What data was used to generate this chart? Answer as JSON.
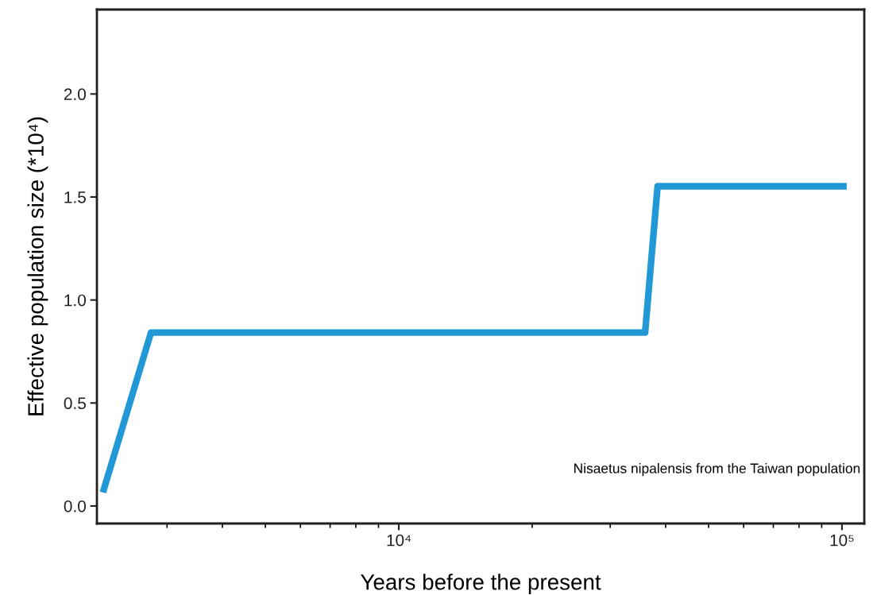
{
  "chart_data": {
    "type": "line",
    "xlabel": "Years before the present",
    "ylabel": "Effective population size (*10⁴)",
    "log": "x",
    "x": [
      2150,
      2760,
      35960,
      38370,
      102500
    ],
    "series": [
      {
        "color": "#2299d6",
        "values": [
          0.066,
          0.842,
          0.842,
          1.552,
          1.552
        ]
      }
    ],
    "xlim": [
      2084,
      112300
    ],
    "ylim": [
      -0.085,
      2.41
    ],
    "xticks": [
      {
        "value": 3000,
        "label": null
      },
      {
        "value": 4000,
        "label": null
      },
      {
        "value": 5000,
        "label": null
      },
      {
        "value": 6000,
        "label": null
      },
      {
        "value": 7000,
        "label": null
      },
      {
        "value": 8000,
        "label": null
      },
      {
        "value": 9000,
        "label": null
      },
      {
        "value": 10000,
        "label": "10⁴"
      },
      {
        "value": 20000,
        "label": null
      },
      {
        "value": 30000,
        "label": null
      },
      {
        "value": 40000,
        "label": null
      },
      {
        "value": 50000,
        "label": null
      },
      {
        "value": 60000,
        "label": null
      },
      {
        "value": 70000,
        "label": null
      },
      {
        "value": 80000,
        "label": null
      },
      {
        "value": 90000,
        "label": null
      },
      {
        "value": 100000,
        "label": "10⁵"
      }
    ],
    "yticks": [
      {
        "value": 0,
        "label": "0.0"
      },
      {
        "value": 0.5,
        "label": "0.5"
      },
      {
        "value": 1,
        "label": "1.0"
      },
      {
        "value": 1.5,
        "label": "1.5"
      },
      {
        "value": 2,
        "label": "2.0"
      }
    ],
    "annotations": [
      "Nisaetus nipalensis from the Taiwan population"
    ],
    "grid": false,
    "marker": "none",
    "line_style": "solid"
  }
}
